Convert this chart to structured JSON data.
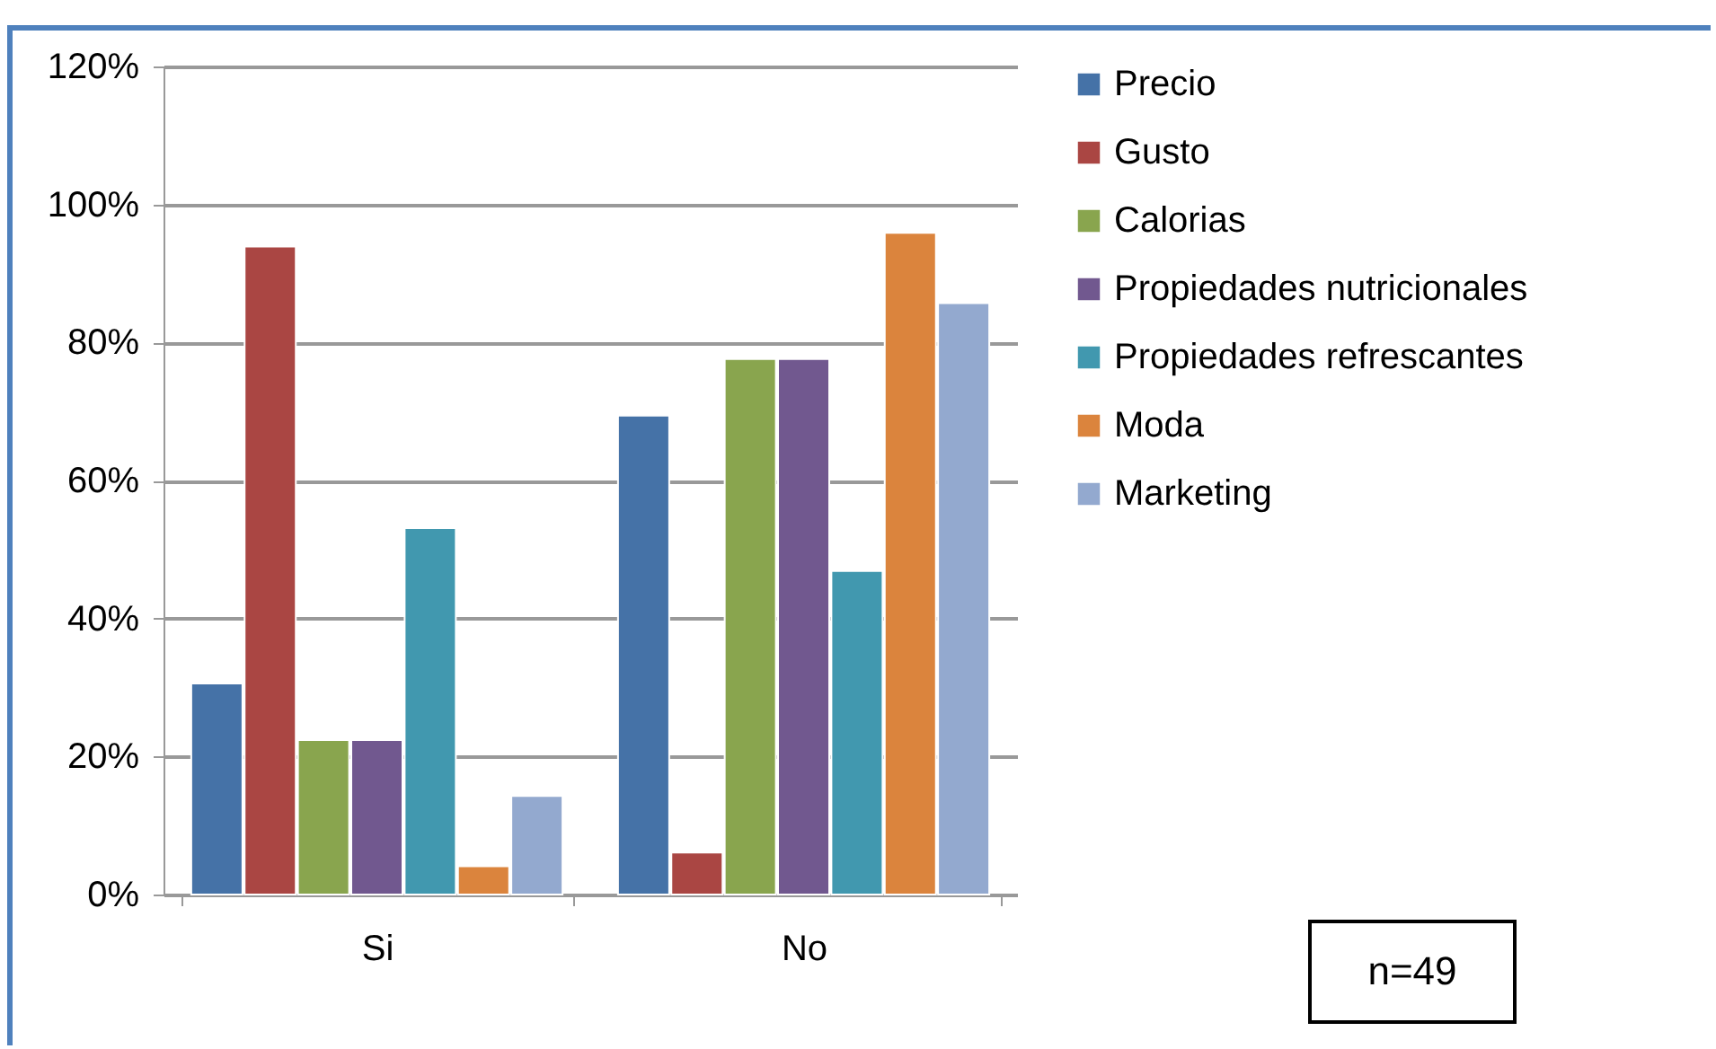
{
  "chart_data": {
    "type": "bar",
    "categories": [
      "Si",
      "No"
    ],
    "series": [
      {
        "name": "Precio",
        "color": "#4572a7",
        "values": [
          30.6,
          69.4
        ]
      },
      {
        "name": "Gusto",
        "color": "#aa4643",
        "values": [
          93.9,
          6.1
        ]
      },
      {
        "name": "Calorias",
        "color": "#89a54e",
        "values": [
          22.4,
          77.6
        ]
      },
      {
        "name": "Propiedades nutricionales",
        "color": "#71588f",
        "values": [
          22.4,
          77.6
        ]
      },
      {
        "name": "Propiedades refrescantes",
        "color": "#4198af",
        "values": [
          53.1,
          46.9
        ]
      },
      {
        "name": "Moda",
        "color": "#db843d",
        "values": [
          4.1,
          95.9
        ]
      },
      {
        "name": "Marketing",
        "color": "#93a9cf",
        "values": [
          14.3,
          85.7
        ]
      }
    ],
    "ylim": [
      0,
      120
    ],
    "yticks": [
      {
        "value": 0,
        "label": "0%"
      },
      {
        "value": 20,
        "label": "20%"
      },
      {
        "value": 40,
        "label": "40%"
      },
      {
        "value": 60,
        "label": "60%"
      },
      {
        "value": 80,
        "label": "80%"
      },
      {
        "value": 100,
        "label": "100%"
      },
      {
        "value": 120,
        "label": "120%"
      }
    ],
    "grid": "y",
    "legend": "right",
    "annotations": [
      "n=49"
    ]
  }
}
